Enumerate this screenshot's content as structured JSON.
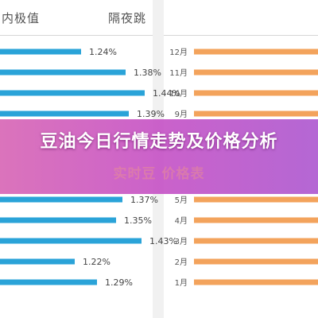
{
  "left_panel": {
    "title": "内极值"
  },
  "right_panel": {
    "title": "隔夜跳"
  },
  "banner": {
    "title": "豆油今日行情走势及价格分析",
    "ghost_text": "实时豆 价格表"
  },
  "colors": {
    "left_bar": "#2aa3d8",
    "right_bar": "#f3a35c",
    "banner": "#c657c2"
  },
  "chart_data": [
    {
      "type": "bar",
      "orientation": "horizontal",
      "title": "内极值",
      "values": [
        1.24,
        1.38,
        1.44,
        1.39,
        1.37,
        1.35,
        1.43,
        1.22,
        1.29
      ],
      "labels": [
        "1.24%",
        "1.38%",
        "1.44%",
        "1.39%",
        "1.37%",
        "1.35%",
        "1.43%",
        "1.22%",
        "1.29%"
      ],
      "unit": "%"
    },
    {
      "type": "bar",
      "orientation": "horizontal",
      "title": "隔夜跳",
      "categories": [
        "12月",
        "11月",
        "10月",
        "9月",
        "5月",
        "4月",
        "3月",
        "2月",
        "1月"
      ]
    }
  ]
}
